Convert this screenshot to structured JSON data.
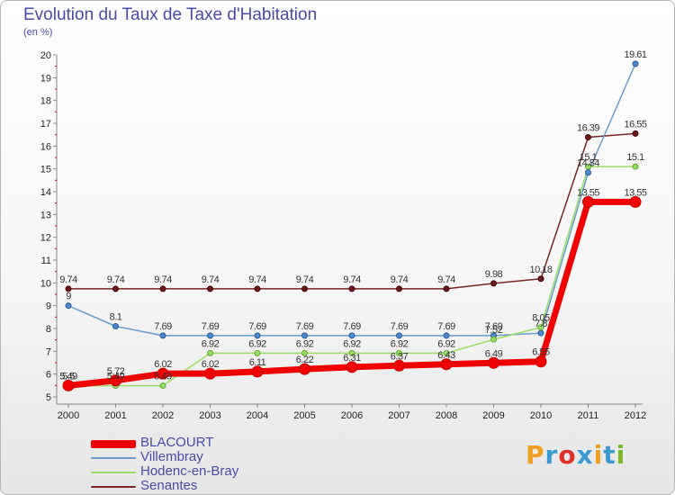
{
  "title": "Evolution du Taux de Taxe d'Habitation",
  "unit_label": "(en %)",
  "brand": "Proxiti",
  "brand_colors": [
    "#f0a020",
    "#3a9ad0",
    "#e0302a",
    "#3a9ad0",
    "#f0a020",
    "#3a9ad0",
    "#7ab82a"
  ],
  "chart_data": {
    "type": "line",
    "title": "Evolution du Taux de Taxe d'Habitation",
    "ylabel": "(en %)",
    "xlabel": "",
    "x": [
      "2000",
      "2001",
      "2002",
      "2003",
      "2004",
      "2005",
      "2006",
      "2007",
      "2008",
      "2009",
      "2010",
      "2011",
      "2012"
    ],
    "ylim": [
      5,
      20
    ],
    "yticks": [
      "5",
      "6",
      "7",
      "8",
      "9",
      "10",
      "11",
      "12",
      "13",
      "14",
      "15",
      "16",
      "17",
      "18",
      "19",
      "20"
    ],
    "grid": false,
    "legend": "bottom-left",
    "series": [
      {
        "name": "Senantes",
        "color": "#7a2525",
        "values": [
          9.74,
          9.74,
          9.74,
          9.74,
          9.74,
          9.74,
          9.74,
          9.74,
          9.74,
          9.98,
          10.18,
          16.39,
          16.55
        ],
        "labels": [
          "9.74",
          "9.74",
          "9.74",
          "9.74",
          "9.74",
          "9.74",
          "9.74",
          "9.74",
          "9.74",
          "9.98",
          "10.18",
          "16.39",
          "16.55"
        ]
      },
      {
        "name": "Villembray",
        "color": "#6a9ccd",
        "values": [
          9,
          8.1,
          7.69,
          7.69,
          7.69,
          7.69,
          7.69,
          7.69,
          7.69,
          7.69,
          7.8,
          14.84,
          19.61
        ],
        "labels": [
          "9",
          "8.1",
          "7.69",
          "7.69",
          "7.69",
          "7.69",
          "7.69",
          "7.69",
          "7.69",
          "7.69",
          "7.8",
          "14.84",
          "19.61"
        ]
      },
      {
        "name": "Hodenc-en-Bray",
        "color": "#99dd66",
        "values": [
          5.49,
          5.49,
          5.49,
          6.92,
          6.92,
          6.92,
          6.92,
          6.92,
          6.92,
          7.52,
          8.05,
          15.1,
          15.1
        ],
        "labels": [
          "5.49",
          "5.49",
          "5.49",
          "6.92",
          "6.92",
          "6.92",
          "6.92",
          "6.92",
          "6.92",
          "7.52",
          "8.05",
          "15.1",
          "15.1"
        ]
      },
      {
        "name": "BLACOURT",
        "color": "#f00000",
        "values": [
          5.5,
          5.72,
          6.02,
          6.02,
          6.11,
          6.22,
          6.31,
          6.37,
          6.43,
          6.49,
          6.55,
          13.55,
          13.55
        ],
        "labels": [
          "5.5",
          "5.72",
          "6.02",
          "6.02",
          "6.11",
          "6.22",
          "6.31",
          "6.37",
          "6.43",
          "6.49",
          "6.55",
          "13.55",
          "13.55"
        ]
      }
    ],
    "legend_order": [
      "BLACOURT",
      "Villembray",
      "Hodenc-en-Bray",
      "Senantes"
    ]
  }
}
